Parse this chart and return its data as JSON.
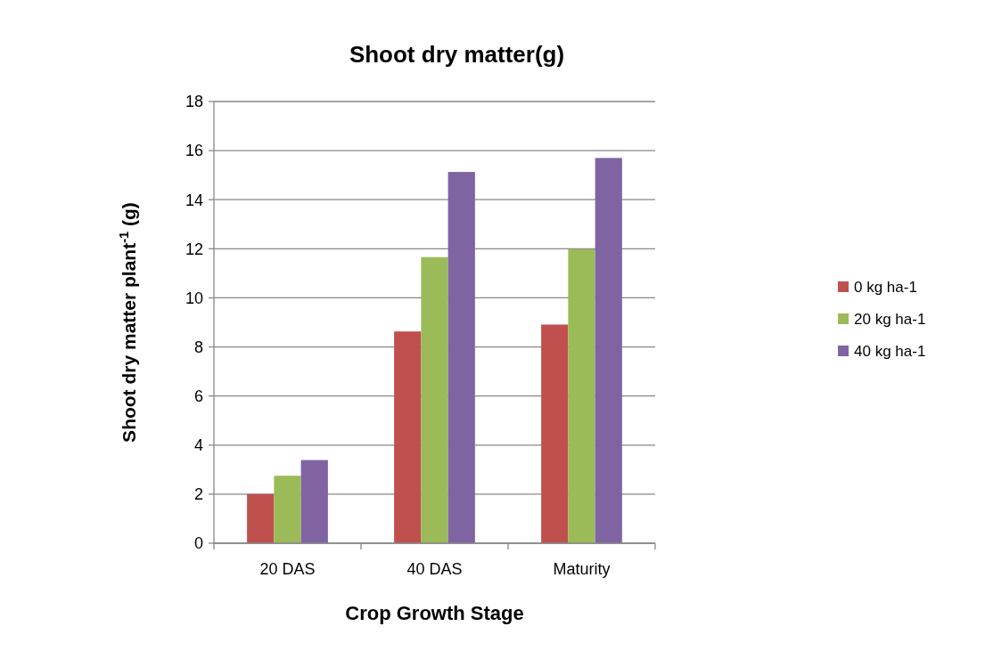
{
  "chart_data": {
    "type": "bar",
    "title": "Shoot dry matter(g)",
    "xlabel": "Crop Growth Stage",
    "ylabel": "Shoot dry matter plant$^{-1}$ (g)",
    "categories": [
      "20 DAS",
      "40 DAS",
      "Maturity"
    ],
    "series": [
      {
        "name": "0 kg ha-1",
        "color": "#c0504d",
        "values": [
          2.0,
          8.63,
          8.91
        ]
      },
      {
        "name": "20 kg ha-1",
        "color": "#9bbb59",
        "values": [
          2.75,
          11.66,
          11.98
        ]
      },
      {
        "name": "40 kg ha-1",
        "color": "#8064a2",
        "values": [
          3.39,
          15.13,
          15.7
        ]
      }
    ],
    "ylim": [
      0,
      18
    ],
    "yticks": [
      0,
      2,
      4,
      6,
      8,
      10,
      12,
      14,
      16,
      18
    ],
    "grid": "y",
    "legend": "right"
  }
}
